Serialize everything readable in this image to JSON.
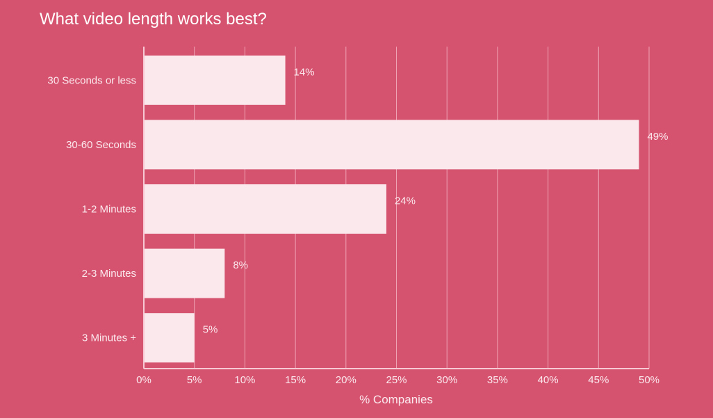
{
  "chart_data": {
    "type": "bar",
    "orientation": "horizontal",
    "title": "What video length works best?",
    "categories": [
      "30 Seconds or less",
      "30-60 Seconds",
      "1-2 Minutes",
      "2-3 Minutes",
      "3 Minutes +"
    ],
    "values": [
      14,
      49,
      24,
      8,
      5
    ],
    "data_labels": [
      "14%",
      "49%",
      "24%",
      "8%",
      "5%"
    ],
    "xlabel": "% Companies",
    "ylabel": "",
    "xlim": [
      0,
      50
    ],
    "xticks": [
      0,
      5,
      10,
      15,
      20,
      25,
      30,
      35,
      40,
      45,
      50
    ],
    "xtick_labels": [
      "0%",
      "5%",
      "10%",
      "15%",
      "20%",
      "25%",
      "30%",
      "35%",
      "40%",
      "45%",
      "50%"
    ],
    "grid": true,
    "colors": {
      "background": "#d6536f",
      "bar": "#fae8ec",
      "grid": "#f0a3b4"
    }
  }
}
